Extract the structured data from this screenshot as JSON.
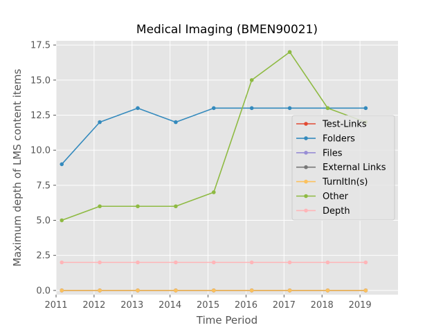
{
  "chart_data": {
    "type": "line",
    "title": "Medical Imaging (BMEN90021)",
    "xlabel": "Time Period",
    "ylabel": "Maximum depth of LMS content items",
    "xlim": [
      2011,
      2020
    ],
    "ylim": [
      -0.3,
      17.8
    ],
    "x_ticks": [
      "2011",
      "2012",
      "2013",
      "2014",
      "2015",
      "2016",
      "2017",
      "2018",
      "2019"
    ],
    "y_ticks": [
      "0.0",
      "2.5",
      "5.0",
      "7.5",
      "10.0",
      "12.5",
      "15.0",
      "17.5"
    ],
    "grid": true,
    "legend_position": "center-right",
    "x": [
      2011.15,
      2012.15,
      2013.15,
      2014.15,
      2015.15,
      2016.15,
      2017.15,
      2018.15,
      2019.15
    ],
    "series": [
      {
        "name": "Test-Links",
        "color": "#E24A33",
        "values": [
          0,
          0,
          0,
          0,
          0,
          0,
          0,
          0,
          0
        ]
      },
      {
        "name": "Folders",
        "color": "#348ABD",
        "values": [
          9,
          12,
          13,
          12,
          13,
          13,
          13,
          13,
          13
        ]
      },
      {
        "name": "Files",
        "color": "#988ED5",
        "values": [
          0,
          0,
          0,
          0,
          0,
          0,
          0,
          0,
          0
        ]
      },
      {
        "name": "External Links",
        "color": "#777777",
        "values": [
          0,
          0,
          0,
          0,
          0,
          0,
          0,
          0,
          0
        ]
      },
      {
        "name": "TurnItIn(s)",
        "color": "#FBC15E",
        "values": [
          0,
          0,
          0,
          0,
          0,
          0,
          0,
          0,
          0
        ]
      },
      {
        "name": "Other",
        "color": "#8EBA42",
        "values": [
          5,
          6,
          6,
          6,
          7,
          15,
          17,
          13,
          12
        ]
      },
      {
        "name": "Depth",
        "color": "#FFB5B8",
        "values": [
          2,
          2,
          2,
          2,
          2,
          2,
          2,
          2,
          2
        ]
      }
    ]
  }
}
